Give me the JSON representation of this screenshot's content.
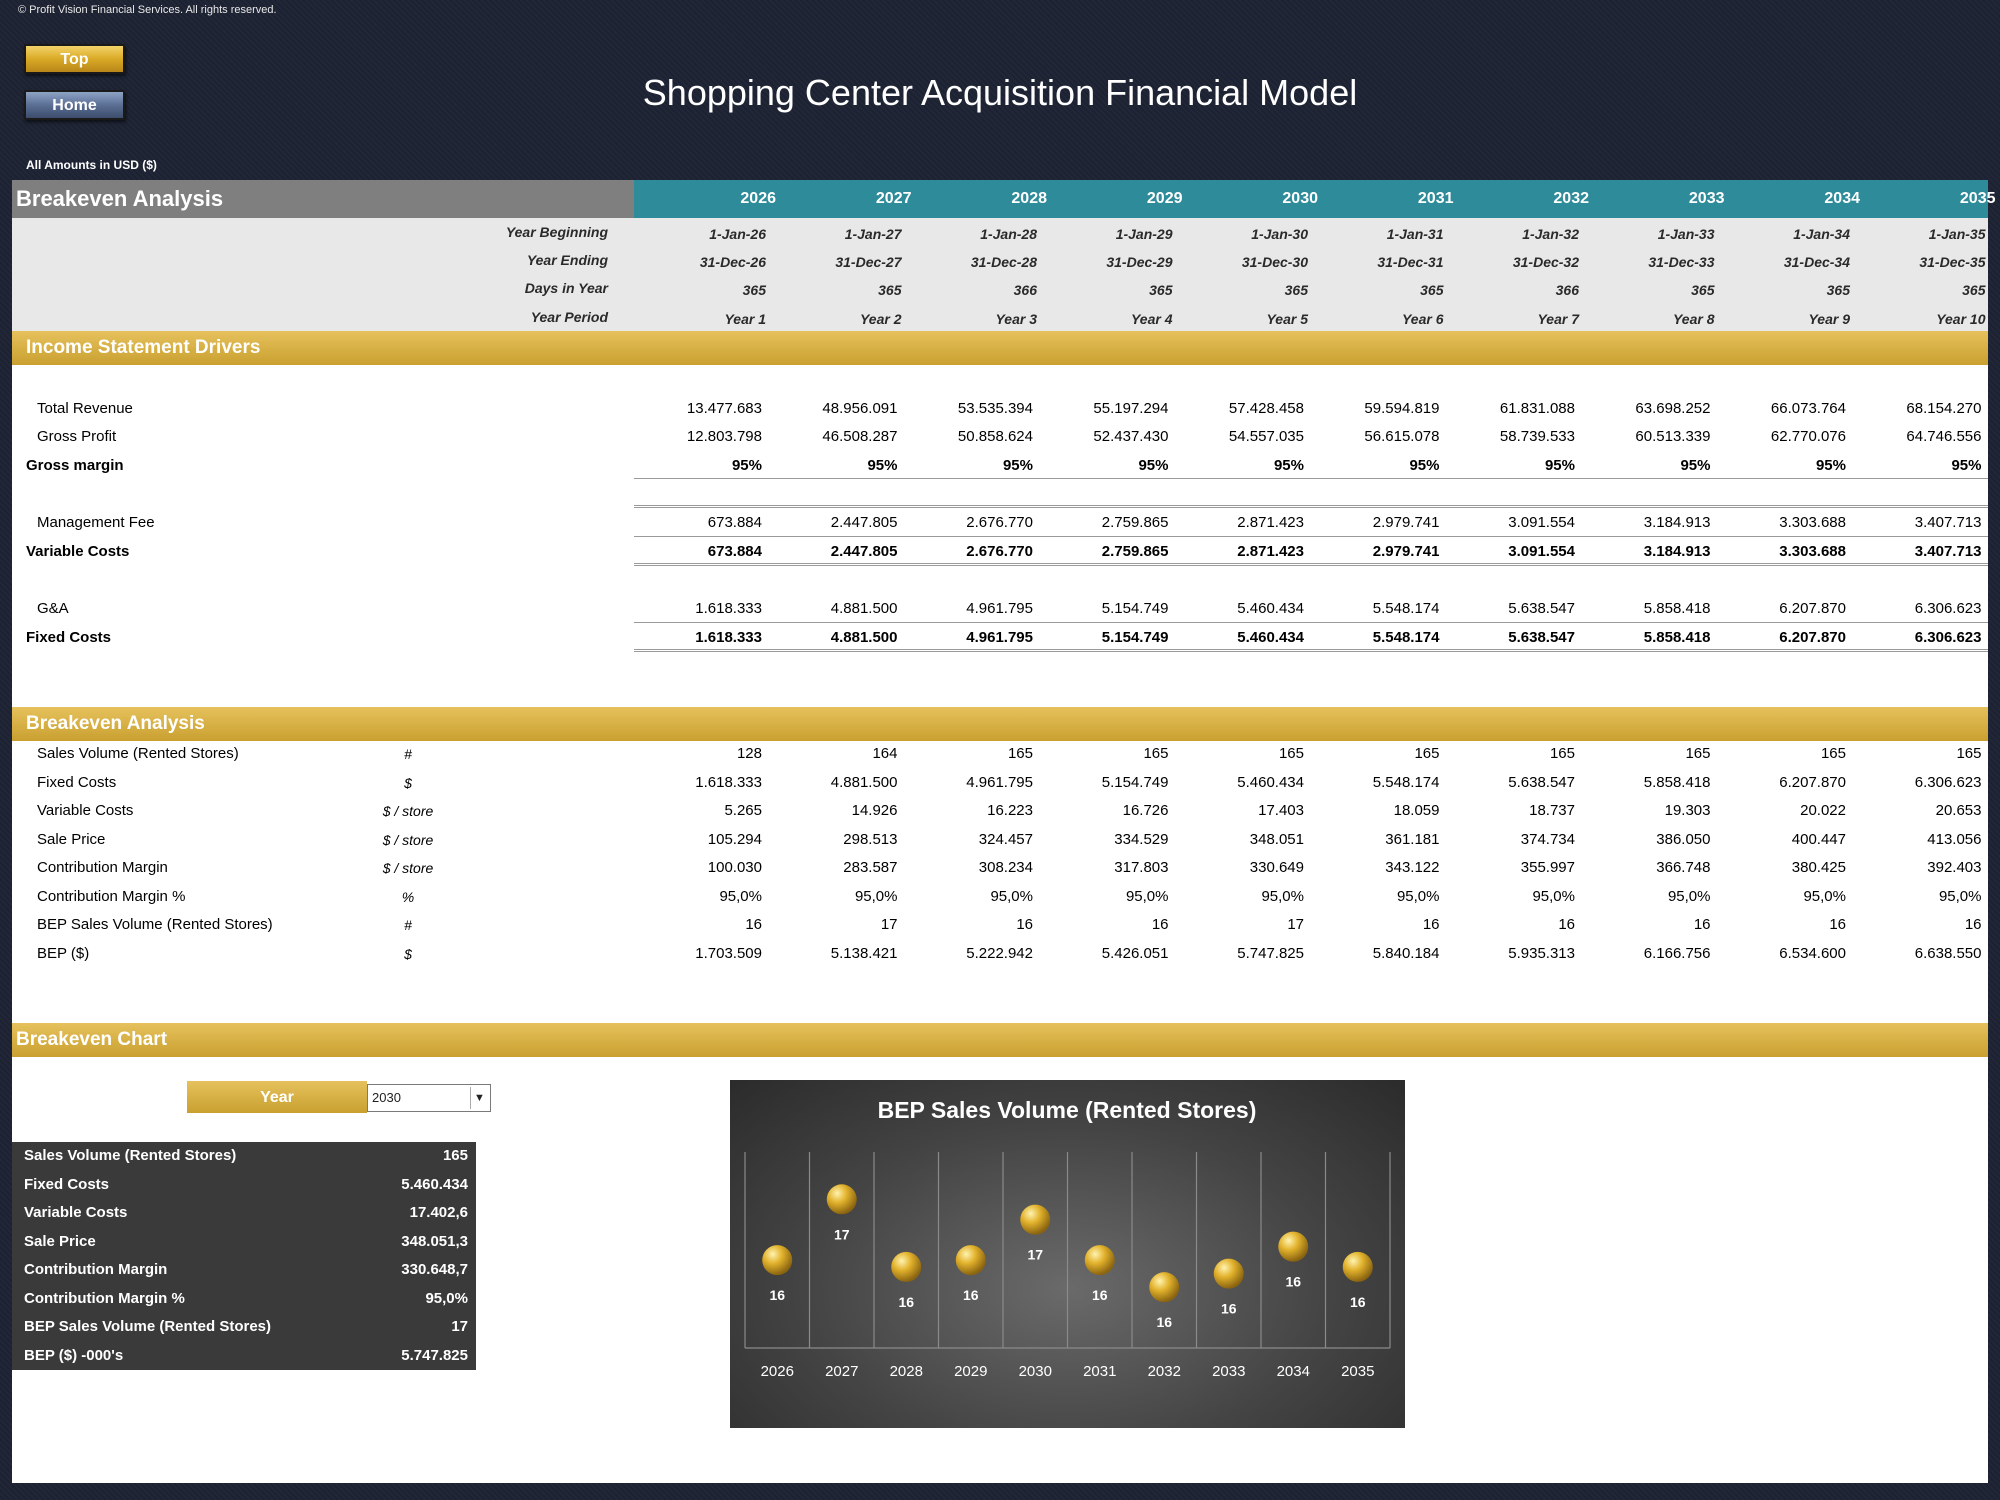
{
  "copyright": "© Profit Vision Financial Services. All rights reserved.",
  "buttons": {
    "top": "Top",
    "home": "Home"
  },
  "title": "Shopping Center Acquisition Financial Model",
  "units": "All Amounts in  USD ($)",
  "section_title": "Breakeven Analysis",
  "years": [
    "2026",
    "2027",
    "2028",
    "2029",
    "2030",
    "2031",
    "2032",
    "2033",
    "2034",
    "2035"
  ],
  "header_rows": [
    {
      "label": "Year Beginning",
      "values": [
        "1-Jan-26",
        "1-Jan-27",
        "1-Jan-28",
        "1-Jan-29",
        "1-Jan-30",
        "1-Jan-31",
        "1-Jan-32",
        "1-Jan-33",
        "1-Jan-34",
        "1-Jan-35"
      ]
    },
    {
      "label": "Year Ending",
      "values": [
        "31-Dec-26",
        "31-Dec-27",
        "31-Dec-28",
        "31-Dec-29",
        "31-Dec-30",
        "31-Dec-31",
        "31-Dec-32",
        "31-Dec-33",
        "31-Dec-34",
        "31-Dec-35"
      ]
    },
    {
      "label": "Days in Year",
      "values": [
        "365",
        "365",
        "366",
        "365",
        "365",
        "365",
        "366",
        "365",
        "365",
        "365"
      ]
    },
    {
      "label": "Year Period",
      "values": [
        "Year 1",
        "Year 2",
        "Year 3",
        "Year 4",
        "Year 5",
        "Year 6",
        "Year 7",
        "Year 8",
        "Year 9",
        "Year 10"
      ]
    }
  ],
  "drivers_title": "Income Statement Drivers",
  "drivers": [
    {
      "label": "Total Revenue",
      "bold": false,
      "values": [
        "13.477.683",
        "48.956.091",
        "53.535.394",
        "55.197.294",
        "57.428.458",
        "59.594.819",
        "61.831.088",
        "63.698.252",
        "66.073.764",
        "68.154.270"
      ]
    },
    {
      "label": "Gross Profit",
      "bold": false,
      "values": [
        "12.803.798",
        "46.508.287",
        "50.858.624",
        "52.437.430",
        "54.557.035",
        "56.615.078",
        "58.739.533",
        "60.513.339",
        "62.770.076",
        "64.746.556"
      ]
    },
    {
      "label": "Gross margin",
      "bold": true,
      "values": [
        "95%",
        "95%",
        "95%",
        "95%",
        "95%",
        "95%",
        "95%",
        "95%",
        "95%",
        "95%"
      ]
    },
    {
      "label": "Management Fee",
      "bold": false,
      "values": [
        "673.884",
        "2.447.805",
        "2.676.770",
        "2.759.865",
        "2.871.423",
        "2.979.741",
        "3.091.554",
        "3.184.913",
        "3.303.688",
        "3.407.713"
      ]
    },
    {
      "label": "Variable Costs",
      "bold": true,
      "values": [
        "673.884",
        "2.447.805",
        "2.676.770",
        "2.759.865",
        "2.871.423",
        "2.979.741",
        "3.091.554",
        "3.184.913",
        "3.303.688",
        "3.407.713"
      ]
    },
    {
      "label": "G&A",
      "bold": false,
      "values": [
        "1.618.333",
        "4.881.500",
        "4.961.795",
        "5.154.749",
        "5.460.434",
        "5.548.174",
        "5.638.547",
        "5.858.418",
        "6.207.870",
        "6.306.623"
      ]
    },
    {
      "label": "Fixed Costs",
      "bold": true,
      "values": [
        "1.618.333",
        "4.881.500",
        "4.961.795",
        "5.154.749",
        "5.460.434",
        "5.548.174",
        "5.638.547",
        "5.858.418",
        "6.207.870",
        "6.306.623"
      ]
    }
  ],
  "breakeven_title": "Breakeven Analysis",
  "breakeven": [
    {
      "label": "Sales Volume (Rented Stores)",
      "unit": "#",
      "values": [
        "128",
        "164",
        "165",
        "165",
        "165",
        "165",
        "165",
        "165",
        "165",
        "165"
      ]
    },
    {
      "label": "Fixed Costs",
      "unit": "$",
      "values": [
        "1.618.333",
        "4.881.500",
        "4.961.795",
        "5.154.749",
        "5.460.434",
        "5.548.174",
        "5.638.547",
        "5.858.418",
        "6.207.870",
        "6.306.623"
      ]
    },
    {
      "label": "Variable Costs",
      "unit": "$ / store",
      "values": [
        "5.265",
        "14.926",
        "16.223",
        "16.726",
        "17.403",
        "18.059",
        "18.737",
        "19.303",
        "20.022",
        "20.653"
      ]
    },
    {
      "label": "Sale Price",
      "unit": "$ / store",
      "values": [
        "105.294",
        "298.513",
        "324.457",
        "334.529",
        "348.051",
        "361.181",
        "374.734",
        "386.050",
        "400.447",
        "413.056"
      ]
    },
    {
      "label": "Contribution Margin",
      "unit": "$ / store",
      "values": [
        "100.030",
        "283.587",
        "308.234",
        "317.803",
        "330.649",
        "343.122",
        "355.997",
        "366.748",
        "380.425",
        "392.403"
      ]
    },
    {
      "label": "Contribution Margin %",
      "unit": "%",
      "values": [
        "95,0%",
        "95,0%",
        "95,0%",
        "95,0%",
        "95,0%",
        "95,0%",
        "95,0%",
        "95,0%",
        "95,0%",
        "95,0%"
      ]
    },
    {
      "label": "BEP Sales Volume (Rented Stores)",
      "unit": "#",
      "values": [
        "16",
        "17",
        "16",
        "16",
        "17",
        "16",
        "16",
        "16",
        "16",
        "16"
      ]
    },
    {
      "label": "BEP ($)",
      "unit": "$",
      "values": [
        "1.703.509",
        "5.138.421",
        "5.222.942",
        "5.426.051",
        "5.747.825",
        "5.840.184",
        "5.935.313",
        "6.166.756",
        "6.534.600",
        "6.638.550"
      ]
    }
  ],
  "chart_section_title": "Breakeven Chart",
  "year_selector": {
    "label": "Year",
    "value": "2030"
  },
  "summary": [
    {
      "label": "Sales Volume (Rented Stores)",
      "value": "165"
    },
    {
      "label": "Fixed Costs",
      "value": "5.460.434"
    },
    {
      "label": "Variable Costs",
      "value": "17.402,6"
    },
    {
      "label": "Sale Price",
      "value": "348.051,3"
    },
    {
      "label": "Contribution Margin",
      "value": "330.648,7"
    },
    {
      "label": "Contribution Margin %",
      "value": "95,0%"
    },
    {
      "label": "BEP Sales Volume (Rented Stores)",
      "value": "17"
    },
    {
      "label": "BEP ($) -000's",
      "value": "5.747.825"
    }
  ],
  "chart_data": {
    "type": "scatter",
    "title": "BEP Sales Volume (Rented Stores)",
    "categories": [
      "2026",
      "2027",
      "2028",
      "2029",
      "2030",
      "2031",
      "2032",
      "2033",
      "2034",
      "2035"
    ],
    "values": [
      16.3,
      17.2,
      16.2,
      16.3,
      16.9,
      16.3,
      15.9,
      16.1,
      16.5,
      16.2
    ],
    "labels": [
      "16",
      "17",
      "16",
      "16",
      "17",
      "16",
      "16",
      "16",
      "16",
      "16"
    ],
    "ylim": [
      15.0,
      17.9
    ],
    "grid": "vertical",
    "marker_color": "#d9a926"
  }
}
